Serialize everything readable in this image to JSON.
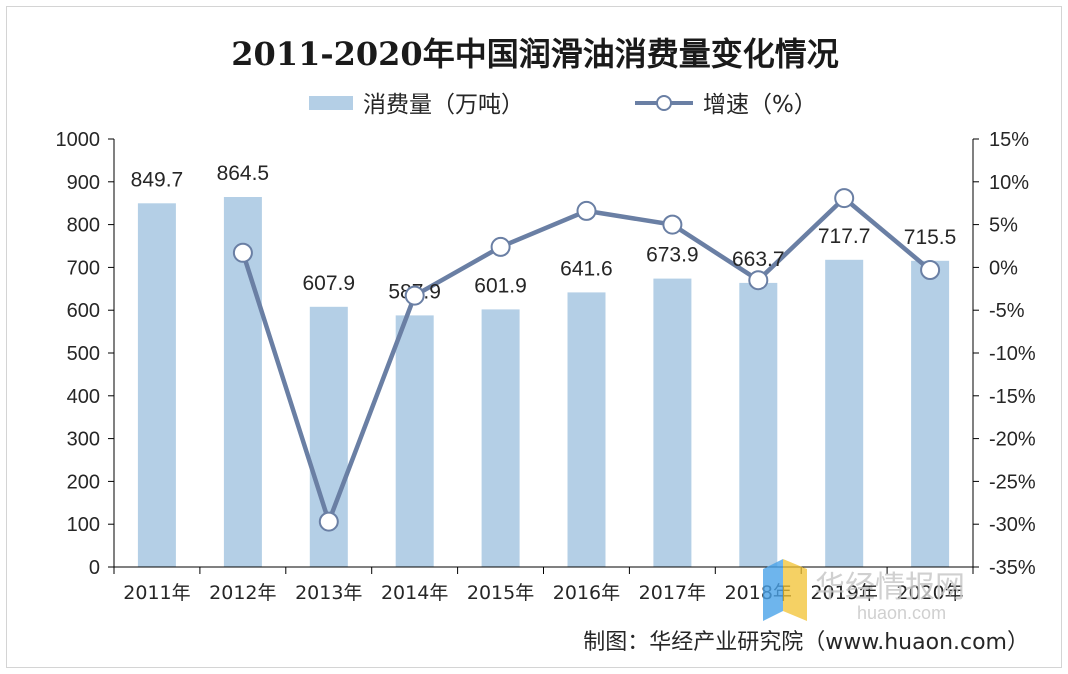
{
  "chart_data": {
    "type": "bar",
    "title": "2011-2020年中国润滑油消费量变化情况",
    "categories": [
      "2011年",
      "2012年",
      "2013年",
      "2014年",
      "2015年",
      "2016年",
      "2017年",
      "2018年",
      "2019年",
      "2020年"
    ],
    "series": [
      {
        "name": "消费量（万吨）",
        "type": "bar",
        "axis": "left",
        "color": "#b4cfe6",
        "values": [
          849.7,
          864.5,
          607.9,
          587.9,
          601.9,
          641.6,
          673.9,
          663.7,
          717.7,
          715.5
        ]
      },
      {
        "name": "增速（%）",
        "type": "line",
        "axis": "right",
        "color": "#6a7fa4",
        "values": [
          null,
          1.7,
          -29.7,
          -3.3,
          2.4,
          6.6,
          5.0,
          -1.5,
          8.1,
          -0.3
        ]
      }
    ],
    "data_labels": [
      "849.7",
      "864.5",
      "607.9",
      "587.9",
      "601.9",
      "641.6",
      "673.9",
      "663.7",
      "717.7",
      "715.5"
    ],
    "ylim": [
      0,
      1000
    ],
    "y_ticks": [
      "0",
      "100",
      "200",
      "300",
      "400",
      "500",
      "600",
      "700",
      "800",
      "900",
      "1000"
    ],
    "y2lim": [
      -35,
      15
    ],
    "y2_ticks": [
      "-35%",
      "-30%",
      "-25%",
      "-20%",
      "-15%",
      "-10%",
      "-5%",
      "0%",
      "5%",
      "10%",
      "15%"
    ],
    "xlabel": "",
    "ylabel": "",
    "grid": false,
    "legend_position": "top-center"
  },
  "source": "制图：华经产业研究院（www.huaon.com）",
  "watermark": {
    "text": "华经情报网",
    "sub": "huaon.com"
  }
}
